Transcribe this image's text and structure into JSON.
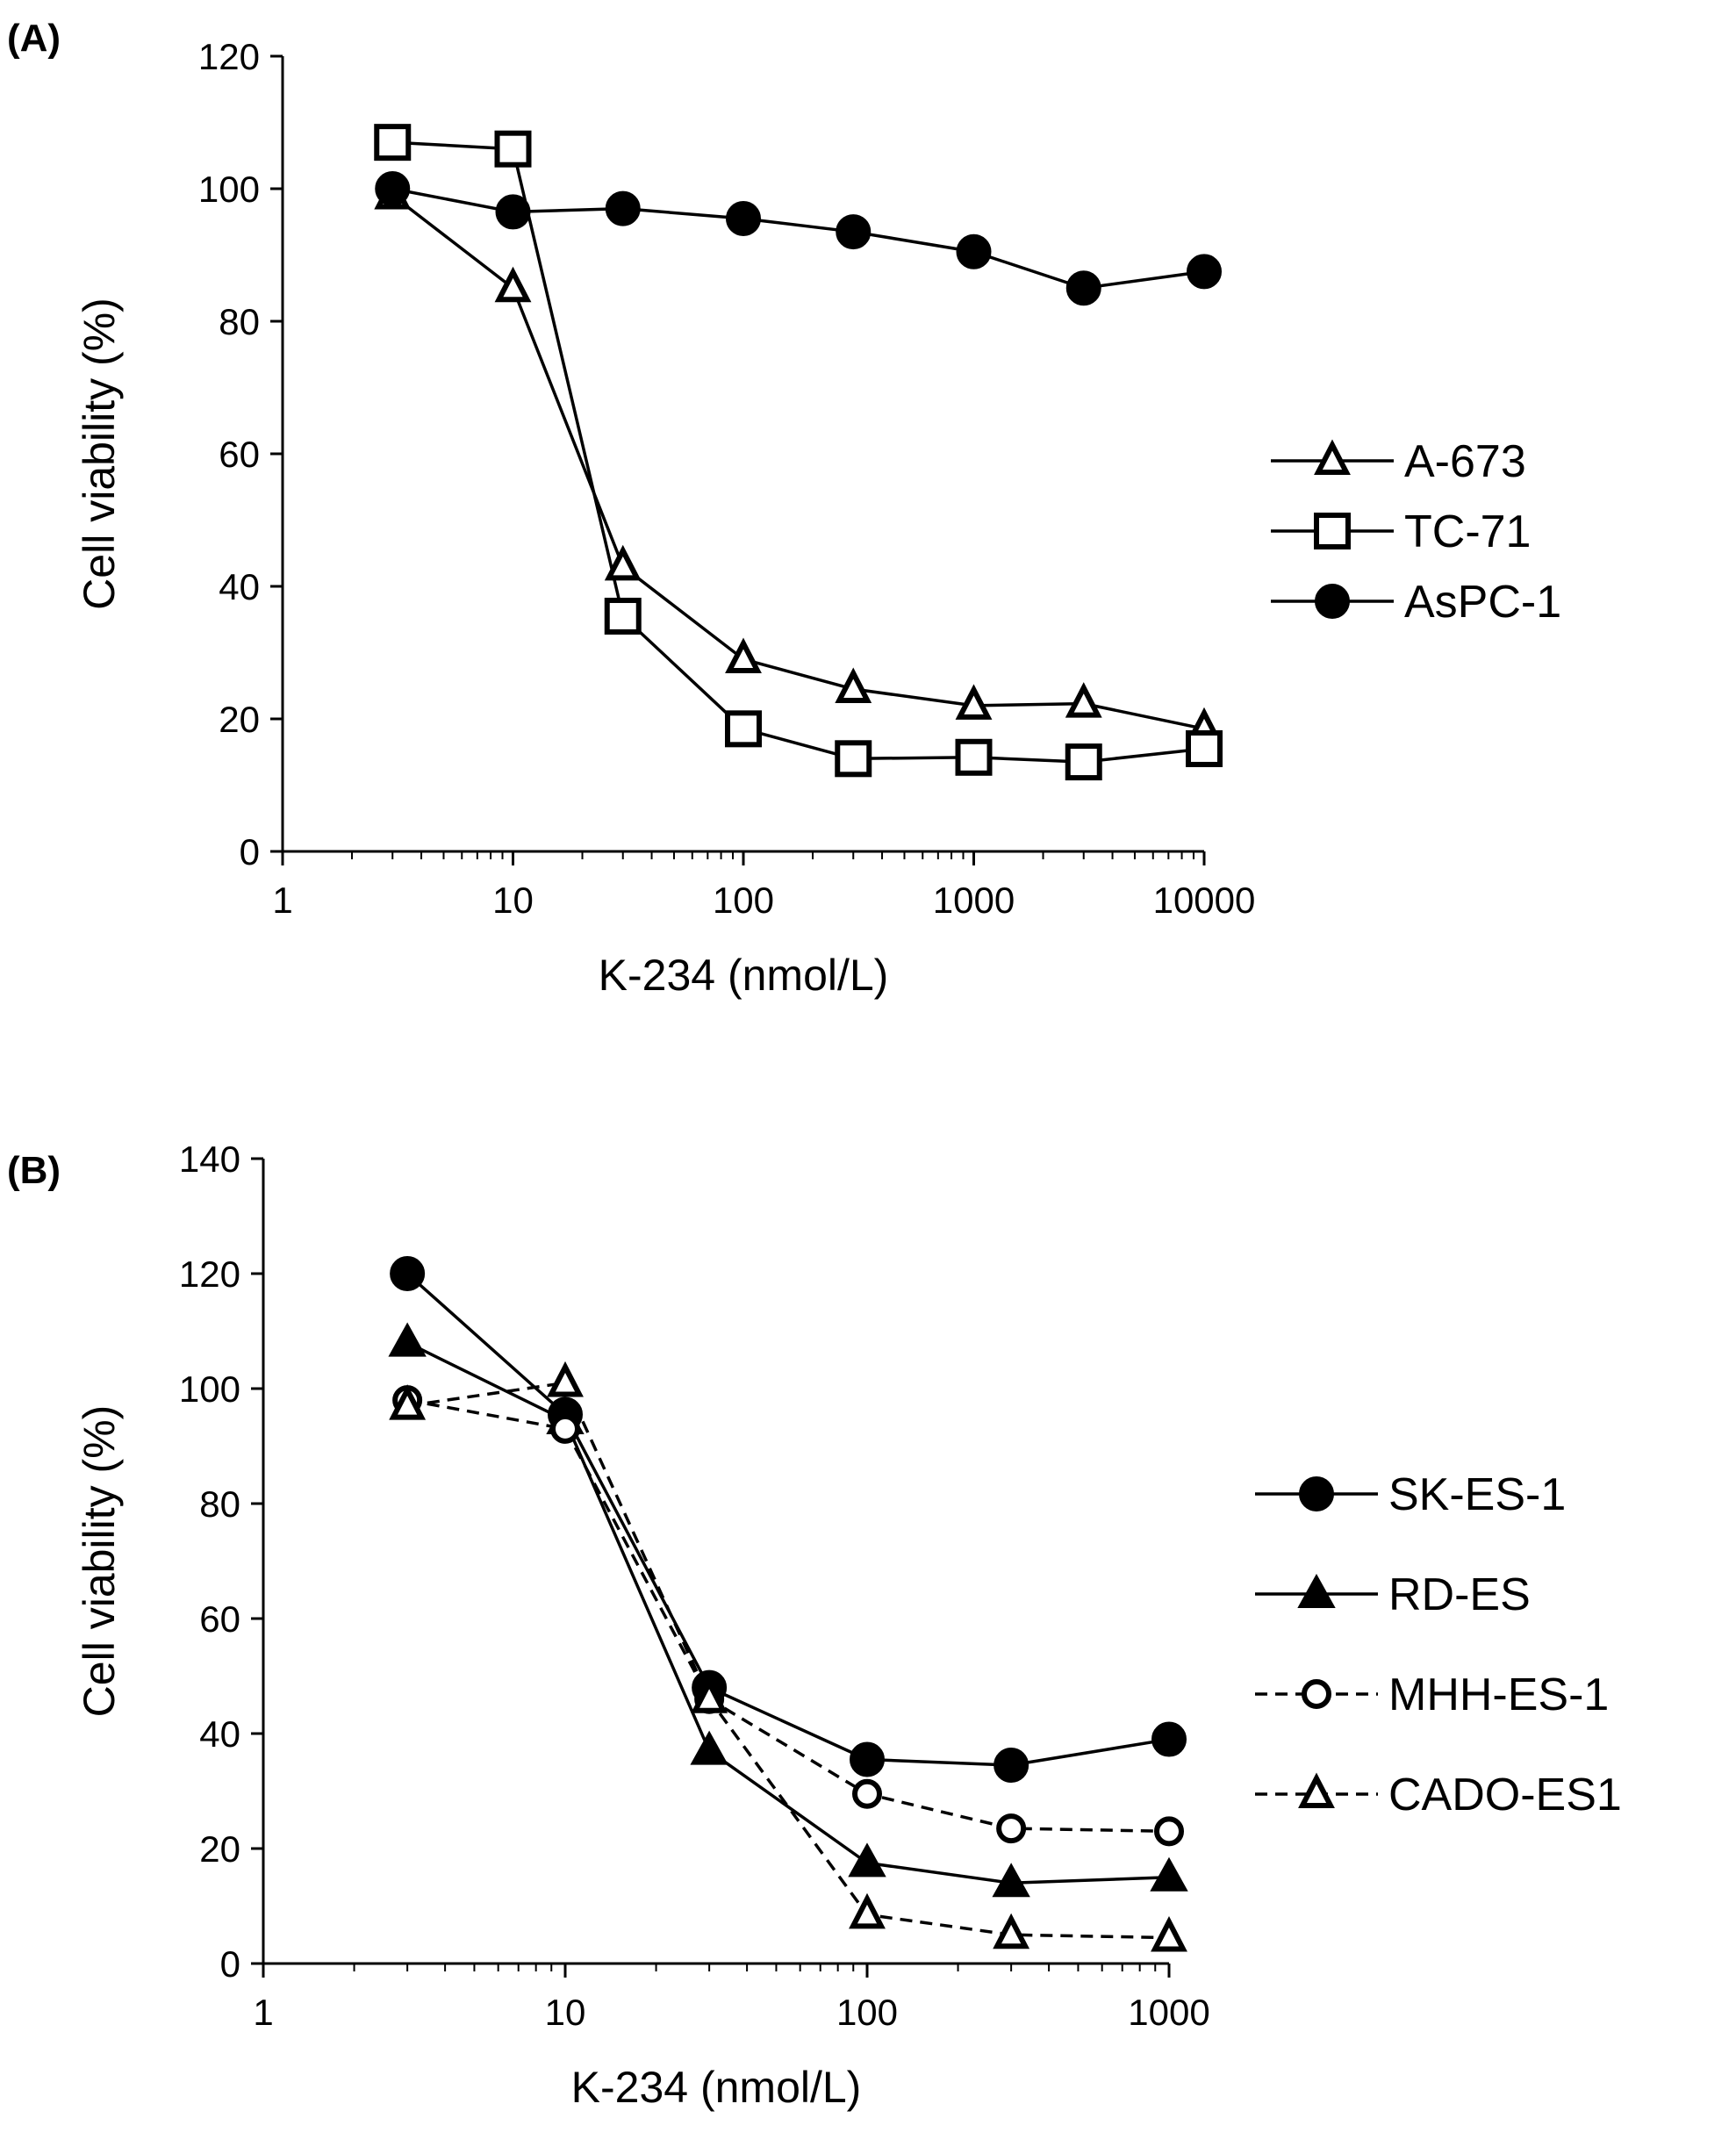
{
  "chart_data": [
    {
      "panel_label": "(A)",
      "type": "line",
      "xscale": "log",
      "xlim": [
        1,
        10000
      ],
      "x_ticks": [
        "1",
        "10",
        "100",
        "1000",
        "10000"
      ],
      "ylim": [
        0,
        120
      ],
      "y_ticks": [
        "0",
        "20",
        "40",
        "60",
        "80",
        "100",
        "120"
      ],
      "xlabel": "K-234 (nmol/L)",
      "ylabel": "Cell viability (%)",
      "grid": false,
      "legend_position": "right",
      "x": [
        3,
        10,
        30,
        100,
        300,
        1000,
        3000,
        10000
      ],
      "series": [
        {
          "name": "A-673",
          "marker": "triangle-open",
          "line": "solid",
          "values": [
            99,
            85,
            43,
            29,
            24.5,
            22,
            22.3,
            18.5
          ]
        },
        {
          "name": "TC-71",
          "marker": "square-open",
          "line": "solid",
          "values": [
            107,
            106,
            35.5,
            18.5,
            14,
            14.2,
            13.5,
            15.5
          ]
        },
        {
          "name": "AsPC-1",
          "marker": "circle-filled",
          "line": "solid",
          "values": [
            100,
            96.5,
            97,
            95.5,
            93.5,
            90.5,
            85,
            87.5
          ]
        }
      ]
    },
    {
      "panel_label": "(B)",
      "type": "line",
      "xscale": "log",
      "xlim": [
        1,
        1000
      ],
      "x_ticks": [
        "1",
        "10",
        "100",
        "1000"
      ],
      "ylim": [
        0,
        140
      ],
      "y_ticks": [
        "0",
        "20",
        "40",
        "60",
        "80",
        "100",
        "120",
        "140"
      ],
      "xlabel": "K-234 (nmol/L)",
      "ylabel": "Cell viability (%)",
      "grid": false,
      "legend_position": "right",
      "x": [
        3,
        10,
        30,
        100,
        300,
        1000
      ],
      "series": [
        {
          "name": "SK-ES-1",
          "marker": "circle-filled",
          "line": "solid",
          "values": [
            120,
            95.5,
            48,
            35.5,
            34.5,
            39
          ]
        },
        {
          "name": "RD-ES",
          "marker": "triangle-filled",
          "line": "solid",
          "values": [
            108,
            94.5,
            37,
            17.5,
            14,
            15
          ]
        },
        {
          "name": "MHH-ES-1",
          "marker": "circle-open",
          "line": "dashed",
          "values": [
            98,
            93,
            46,
            29.5,
            23.5,
            23
          ]
        },
        {
          "name": "CADO-ES1",
          "marker": "triangle-open",
          "line": "dashed",
          "values": [
            97,
            101,
            46,
            8.5,
            5,
            4.5
          ]
        }
      ]
    }
  ]
}
